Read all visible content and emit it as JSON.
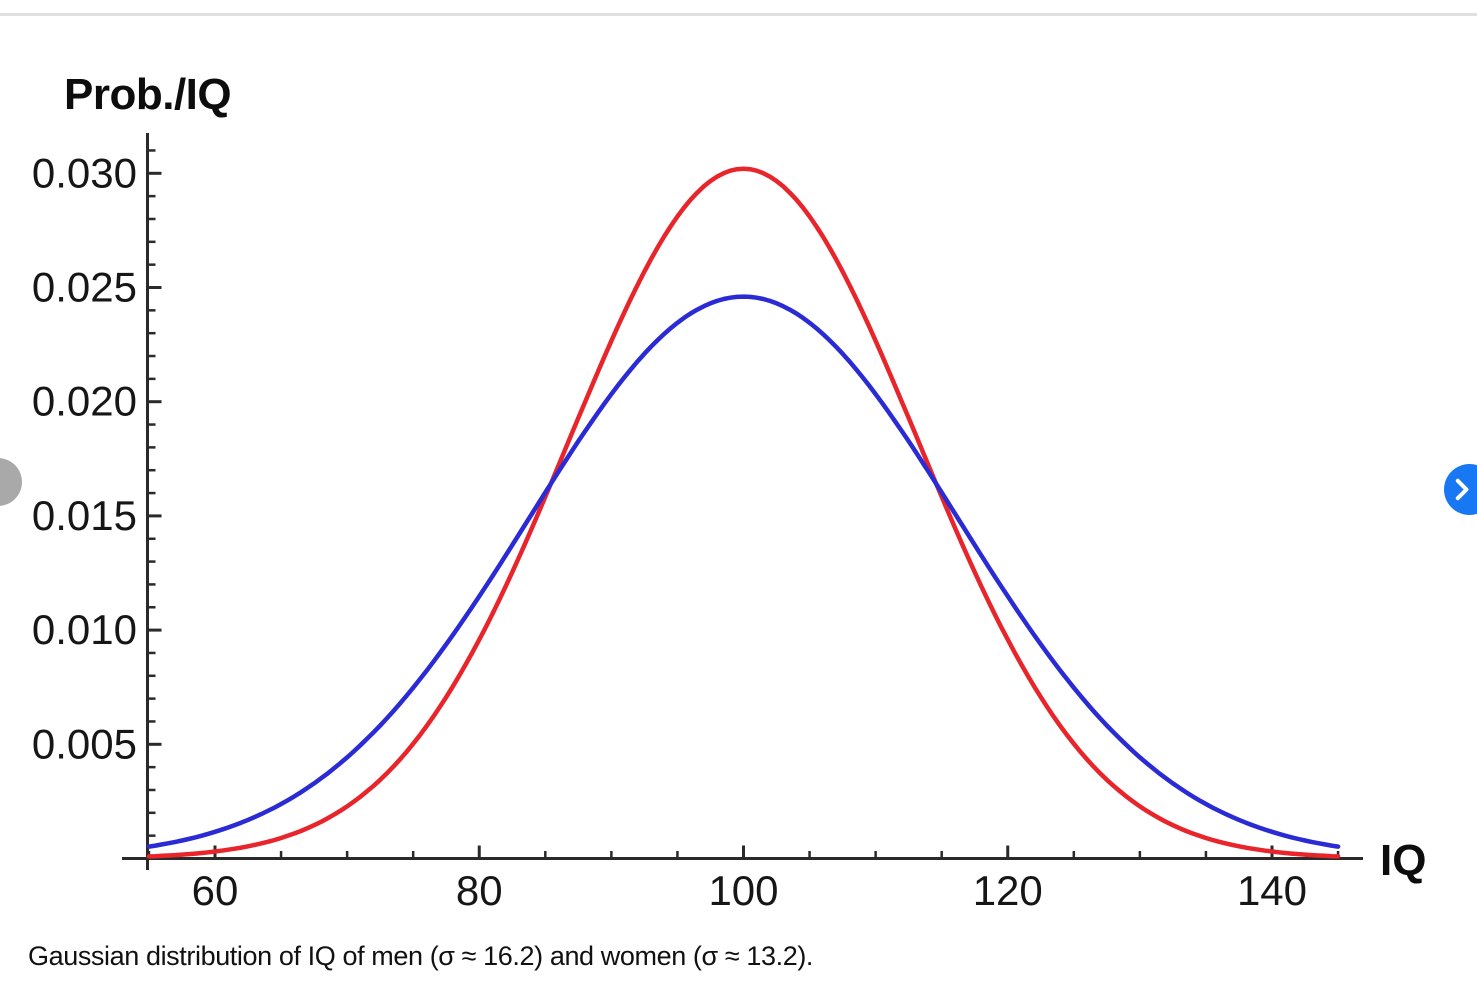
{
  "caption": "Gaussian distribution of IQ of men (σ ≈ 16.2) and women (σ ≈ 13.2).",
  "viewer": {
    "prev_button": {
      "icon": "chevron-left-icon",
      "color": "#a9a9a9"
    },
    "next_button": {
      "icon": "chevron-right-icon",
      "color": "#1877f2"
    }
  },
  "colors": {
    "axis": "#2a2a2a",
    "tick_label": "#161616",
    "divider": "#e0e0e0",
    "curve_women_red": "#e8252b",
    "curve_men_blue": "#2b2bd5",
    "caption_text": "#111111",
    "next_button_bg": "#1877f2",
    "prev_button_bg": "#a9a9a9"
  },
  "chart_data": {
    "type": "line",
    "title": "",
    "xlabel": "IQ",
    "ylabel": "Prob./IQ",
    "grid": false,
    "legend": "none",
    "x_axis_range": [
      53.5,
      147
    ],
    "y_axis_range": [
      0,
      0.0318
    ],
    "curve_x_range": [
      55,
      145
    ],
    "x_major_ticks": [
      60,
      80,
      100,
      120,
      140
    ],
    "x_minor_tick_step": 5,
    "y_major_ticks": [
      0.005,
      0.01,
      0.015,
      0.02,
      0.025,
      0.03
    ],
    "y_major_tick_labels": [
      "0.005",
      "0.010",
      "0.015",
      "0.020",
      "0.025",
      "0.030"
    ],
    "y_minor_tick_step": 0.001,
    "x_sample_points": [
      55,
      60,
      65,
      70,
      75,
      80,
      85,
      90,
      95,
      100,
      105,
      110,
      115,
      120,
      125,
      130,
      135,
      140,
      145
    ],
    "series": [
      {
        "name": "women",
        "label": "women (σ ≈ 13.2)",
        "distribution": "gaussian",
        "mean": 100,
        "sigma": 13.2,
        "peak_value": 0.0302,
        "color": "#e8252b",
        "values": [
          0.0001,
          0.0003,
          0.0009,
          0.0023,
          0.005,
          0.0096,
          0.0158,
          0.0227,
          0.0281,
          0.0302,
          0.0281,
          0.0227,
          0.0158,
          0.0096,
          0.005,
          0.0023,
          0.0009,
          0.0003,
          0.0001
        ]
      },
      {
        "name": "men",
        "label": "men (σ ≈ 16.2)",
        "distribution": "gaussian",
        "mean": 100,
        "sigma": 16.2,
        "peak_value": 0.0246,
        "color": "#2b2bd5",
        "values": [
          0.0005,
          0.0012,
          0.0024,
          0.0044,
          0.0075,
          0.0115,
          0.016,
          0.0204,
          0.0235,
          0.0246,
          0.0235,
          0.0204,
          0.016,
          0.0115,
          0.0075,
          0.0044,
          0.0024,
          0.0012,
          0.0005
        ]
      }
    ]
  }
}
